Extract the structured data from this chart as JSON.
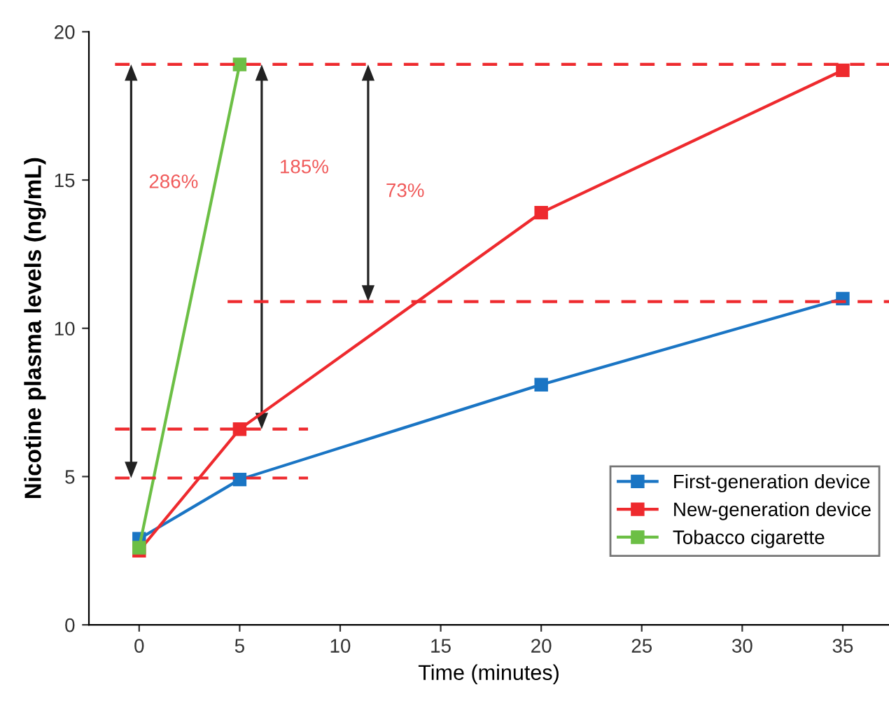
{
  "chart_data": {
    "type": "line",
    "xlabel": "Time (minutes)",
    "ylabel": "Nicotine plasma levels (ng/mL)",
    "xlim": [
      -2.5,
      37.3
    ],
    "ylim": [
      0,
      20
    ],
    "xticks": [
      0,
      5,
      10,
      15,
      20,
      25,
      30,
      35
    ],
    "yticks": [
      0,
      5,
      10,
      15,
      20
    ],
    "grid": false,
    "legend": "bottom right",
    "marker": "square",
    "line_style": "solid",
    "series": [
      {
        "name": "First-generation device",
        "color": "#1a75c4",
        "x": [
          0,
          5,
          20,
          35
        ],
        "values": [
          2.9,
          4.9,
          8.1,
          11.0
        ]
      },
      {
        "name": "New-generation device",
        "color": "#ee2a2e",
        "x": [
          0,
          5,
          20,
          35
        ],
        "values": [
          2.5,
          6.6,
          13.9,
          18.7
        ]
      },
      {
        "name": "Tobacco cigarette",
        "color": "#6cbf45",
        "x": [
          0,
          5
        ],
        "values": [
          2.6,
          18.9
        ]
      },
      {
        "color": "#ee2a2e",
        "x": [
          -1.2,
          37.3
        ],
        "values": [
          18.9,
          18.9
        ],
        "marker": "none",
        "line_style": "dashed"
      },
      {
        "color": "#ee2a2e",
        "x": [
          -1.2,
          8.4
        ],
        "values": [
          4.95,
          4.95
        ],
        "marker": "none",
        "line_style": "dashed"
      },
      {
        "color": "#ee2a2e",
        "x": [
          -1.2,
          8.4
        ],
        "values": [
          6.6,
          6.6
        ],
        "marker": "none",
        "line_style": "dashed"
      },
      {
        "color": "#ee2a2e",
        "x": [
          4.4,
          37.3
        ],
        "values": [
          10.9,
          10.9
        ],
        "marker": "none",
        "line_style": "dashed"
      }
    ],
    "annotations": [
      "286%",
      "185%",
      "73%"
    ]
  }
}
